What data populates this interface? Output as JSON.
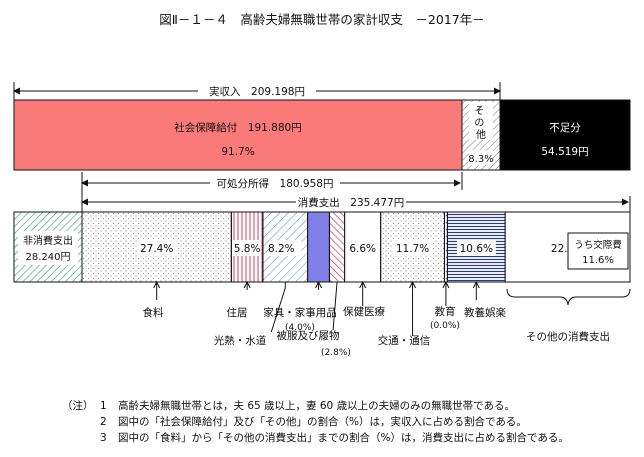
{
  "title": "図Ⅱ－１－４　高齢夫婦無職世帯の家計収支　－2017年－",
  "income": {
    "total_label": "実収入　209.198円",
    "social_security_label": "社会保障給付　191.880円",
    "social_security_pct": "91.7%",
    "other_label": "そ の 他",
    "other_pct": "8.3%",
    "deficit_label": "不足分",
    "deficit_value": "54.519円"
  },
  "disposable_label": "可処分所得　180.958円",
  "consumption_label": "消費支出　235.477円",
  "nonconsumption_label": "非消費支出",
  "nonconsumption_value": "28.240円",
  "kosai_label": "うち交際費",
  "kosai_pct": "11.6%",
  "colors": {
    "social_security": "#fa7a7a",
    "deficit": "#000000",
    "furniture_blue": "#8080e8",
    "nonconsumption_hatch": "#3aa080",
    "education_stripe": "#2a3a8a"
  },
  "chart_data": {
    "type": "bar",
    "title": "図Ⅱ－１－４　高齢夫婦無職世帯の家計収支　－2017年－",
    "income_yen": {
      "実収入": 209198,
      "社会保障給付": 191880,
      "その他": 17318,
      "不足分": 54519,
      "可処分所得": 180958
    },
    "income_share_pct": {
      "社会保障給付": 91.7,
      "その他": 8.3
    },
    "expenditure_yen": {
      "非消費支出": 28240,
      "消費支出": 235477
    },
    "consumption_share_pct": [
      {
        "label": "食料",
        "value": 27.4,
        "shown": "27.4%"
      },
      {
        "label": "住居",
        "value": 5.8,
        "shown": "5.8%"
      },
      {
        "label": "光熱・水道",
        "value": 8.2,
        "shown": "8.2%"
      },
      {
        "label": "家具・家事用品",
        "value": 4.0,
        "shown": "(4.0%)"
      },
      {
        "label": "被服及び履物",
        "value": 2.8,
        "shown": "(2.8%)"
      },
      {
        "label": "保健医療",
        "value": 6.6,
        "shown": "6.6%"
      },
      {
        "label": "交通・通信",
        "value": 11.7,
        "shown": "11.7%"
      },
      {
        "label": "教育",
        "value": 0.0,
        "shown": "(0.0%)"
      },
      {
        "label": "教養娯楽",
        "value": 10.6,
        "shown": "10.6%"
      },
      {
        "label": "その他の消費支出",
        "value": 22.9,
        "shown": "22.9%"
      }
    ],
    "sub_share_pct": {
      "うち交際費": 11.6
    }
  },
  "notes": [
    {
      "mark": "（注）",
      "num": "1",
      "text": "高齢夫婦無職世帯とは，夫 65 歳以上，妻 60 歳以上の夫婦のみの無職世帯である。"
    },
    {
      "mark": "",
      "num": "2",
      "text": "図中の「社会保障給付」及び「その他」の割合（%）は，実収入に占める割合である。"
    },
    {
      "mark": "",
      "num": "3",
      "text": "図中の「食料」から「その他の消費支出」までの割合（%）は，消費支出に占める割合である。"
    }
  ]
}
